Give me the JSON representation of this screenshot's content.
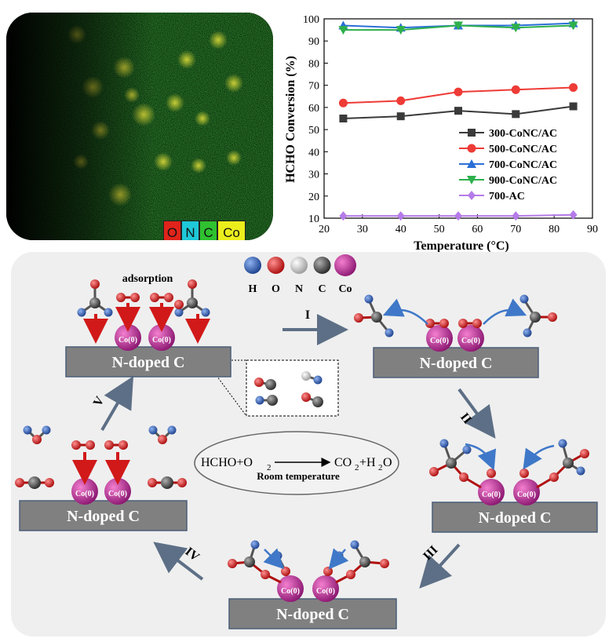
{
  "eds_map": {
    "element_legend": [
      {
        "label": "O",
        "color": "#e0241b"
      },
      {
        "label": "N",
        "color": "#1ec8d8"
      },
      {
        "label": "C",
        "color": "#2fc12f"
      },
      {
        "label": "Co",
        "color": "#ecee1c"
      }
    ]
  },
  "chart_data": {
    "type": "line",
    "xlabel": "Temperature (°C)",
    "ylabel": "HCHO Conversion (%)",
    "xlim": [
      20,
      90
    ],
    "ylim": [
      10,
      100
    ],
    "x_ticks": [
      20,
      30,
      40,
      50,
      60,
      70,
      80,
      90
    ],
    "y_ticks": [
      10,
      20,
      30,
      40,
      50,
      60,
      70,
      80,
      90,
      100
    ],
    "x": [
      25,
      40,
      55,
      70,
      85
    ],
    "grid": false,
    "legend_position": "middle-right",
    "series": [
      {
        "name": "300-CoNC/AC",
        "marker": "square",
        "color": "#3a3a3a",
        "values": [
          55,
          56,
          58.5,
          57,
          60.5
        ]
      },
      {
        "name": "500-CoNC/AC",
        "marker": "circle",
        "color": "#ee3b36",
        "values": [
          62,
          63,
          67,
          68,
          69
        ]
      },
      {
        "name": "700-CoNC/AC",
        "marker": "triangle-up",
        "color": "#2a6fd6",
        "values": [
          97,
          96,
          97,
          97,
          98
        ]
      },
      {
        "name": "900-CoNC/AC",
        "marker": "triangle-down",
        "color": "#2db04b",
        "values": [
          95,
          95,
          97,
          96,
          97
        ]
      },
      {
        "name": "700-AC",
        "marker": "diamond",
        "color": "#b57be8",
        "values": [
          11,
          11,
          11,
          11,
          11.5
        ]
      }
    ]
  },
  "mechanism": {
    "atom_legend": [
      {
        "label": "H",
        "color": "#2f62b8"
      },
      {
        "label": "O",
        "color": "#dd1a1a"
      },
      {
        "label": "N",
        "color": "#d8d8d8"
      },
      {
        "label": "C",
        "color": "#5a5a5a"
      },
      {
        "label": "Co",
        "color": "#c8309a"
      }
    ],
    "adsorption_label": "adsorption",
    "substrate_label": "N-doped C",
    "co_label": "Co(0)",
    "reaction": {
      "reactants": "HCHO+O",
      "reactant_sub": "2",
      "product1": "CO",
      "product1_sub": "2",
      "plus": "+H",
      "product2_sub": "2",
      "product2_tail": "O",
      "condition": "Room temperature"
    },
    "steps": [
      "I",
      "II",
      "III",
      "IV",
      "V"
    ]
  }
}
